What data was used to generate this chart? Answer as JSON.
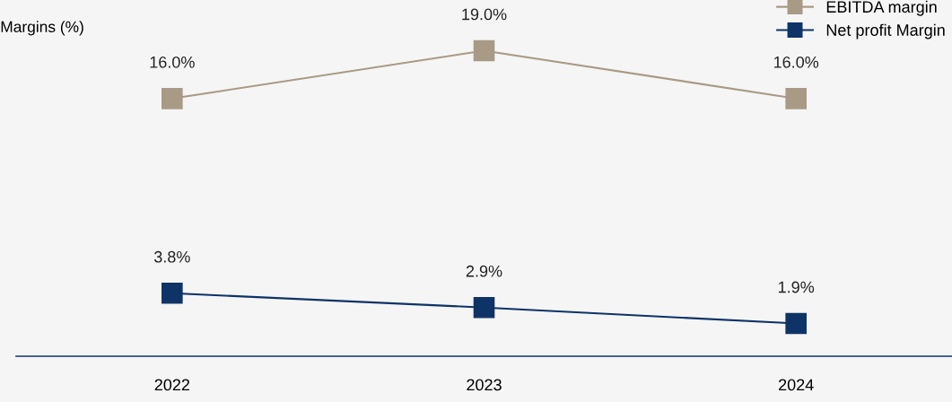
{
  "chart_data": {
    "type": "line",
    "ylabel": "Margins (%)",
    "categories": [
      "2022",
      "2023",
      "2024"
    ],
    "series": [
      {
        "name": "EBITDA margin",
        "color": "#a89a85",
        "values": [
          16.0,
          19.0,
          16.0
        ],
        "value_labels": [
          "16.0%",
          "19.0%",
          "16.0%"
        ]
      },
      {
        "name": "Net profit Margin",
        "color": "#0e3366",
        "values": [
          3.8,
          2.9,
          1.9
        ],
        "value_labels": [
          "3.8%",
          "2.9%",
          "1.9%"
        ]
      }
    ],
    "tick_labels": "x",
    "grid": false,
    "legend": "top right",
    "marker": "square",
    "line_style": "solid"
  }
}
